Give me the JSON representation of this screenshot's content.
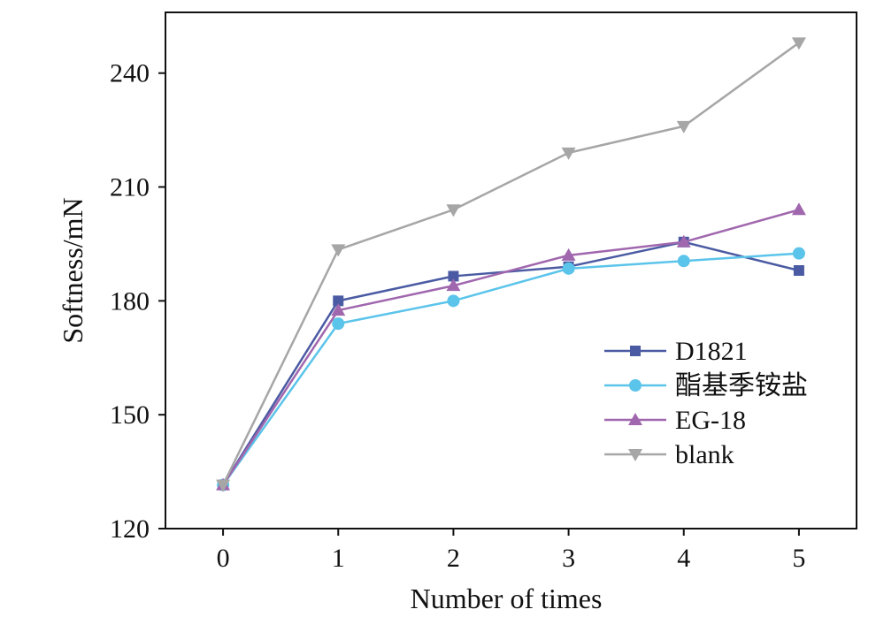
{
  "chart_data": {
    "type": "line",
    "title": "",
    "xlabel": "Number of times",
    "ylabel": "Softness/mN",
    "x": [
      0,
      1,
      2,
      3,
      4,
      5
    ],
    "x_ticks": [
      "0",
      "1",
      "2",
      "3",
      "4",
      "5"
    ],
    "xlim": [
      -0.5,
      5.5
    ],
    "y_ticks": [
      "120",
      "150",
      "180",
      "210",
      "240"
    ],
    "ylim": [
      120,
      256
    ],
    "grid": false,
    "legend_position": "bottom-right",
    "series": [
      {
        "name": "D1821",
        "color": "#4B5BA3",
        "marker": "square",
        "values": [
          131.5,
          180,
          186.5,
          189,
          195.5,
          188
        ]
      },
      {
        "name": "酯基季铵盐",
        "color": "#5BC4EA",
        "marker": "circle",
        "values": [
          131.5,
          174,
          180,
          188.5,
          190.5,
          192.5
        ]
      },
      {
        "name": "EG-18",
        "color": "#A067AE",
        "marker": "triangle-up",
        "values": [
          131.5,
          177.5,
          184,
          192,
          195.5,
          204
        ]
      },
      {
        "name": "blank",
        "color": "#A6A6A6",
        "marker": "triangle-down",
        "values": [
          131.5,
          193.5,
          204,
          219,
          226,
          248
        ]
      }
    ]
  }
}
